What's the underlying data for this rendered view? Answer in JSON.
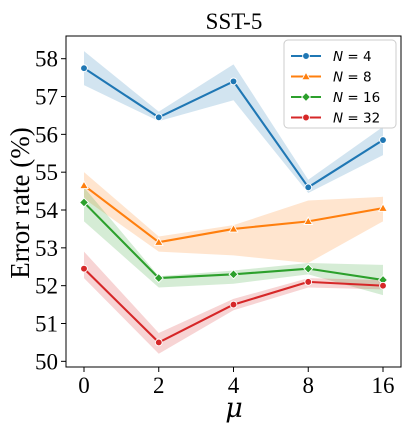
{
  "chart_data": {
    "type": "line",
    "title": "SST-5",
    "xlabel": "μ",
    "ylabel": "Error rate (%)",
    "categories": [
      "0",
      "2",
      "4",
      "8",
      "16"
    ],
    "ylim": [
      49.85,
      58.6
    ],
    "yticks": [
      50,
      51,
      52,
      53,
      54,
      55,
      56,
      57,
      58
    ],
    "legend": "top-right",
    "grid": false,
    "series": [
      {
        "name": "N = 4",
        "var": "N",
        "op": " = ",
        "num": "4",
        "color": "#1f77b4",
        "marker": "circle",
        "values": [
          57.75,
          56.45,
          57.4,
          54.6,
          55.85
        ],
        "lower": [
          57.3,
          56.35,
          56.9,
          54.45,
          55.45
        ],
        "upper": [
          58.2,
          56.6,
          57.85,
          54.8,
          56.2
        ]
      },
      {
        "name": "N = 8",
        "var": "N",
        "op": " = ",
        "num": "8",
        "color": "#ff7f0e",
        "marker": "triangle",
        "values": [
          54.65,
          53.15,
          53.5,
          53.7,
          54.05
        ],
        "lower": [
          54.3,
          52.9,
          52.8,
          52.6,
          53.7
        ],
        "upper": [
          55.0,
          53.3,
          53.6,
          54.25,
          54.35
        ]
      },
      {
        "name": "N = 16",
        "var": "N",
        "op": " = ",
        "num": "16",
        "color": "#2ca02c",
        "marker": "diamond",
        "values": [
          54.2,
          52.2,
          52.3,
          52.45,
          52.15
        ],
        "lower": [
          53.7,
          51.95,
          52.05,
          52.3,
          51.75
        ],
        "upper": [
          54.6,
          52.25,
          52.4,
          52.6,
          52.55
        ]
      },
      {
        "name": "N = 32",
        "var": "N",
        "op": " = ",
        "num": "32",
        "color": "#d62728",
        "marker": "circle",
        "values": [
          52.45,
          50.5,
          51.5,
          52.1,
          52.0
        ],
        "lower": [
          52.2,
          50.2,
          51.35,
          51.95,
          51.9
        ],
        "upper": [
          52.9,
          50.75,
          51.65,
          52.2,
          52.15
        ]
      }
    ]
  }
}
